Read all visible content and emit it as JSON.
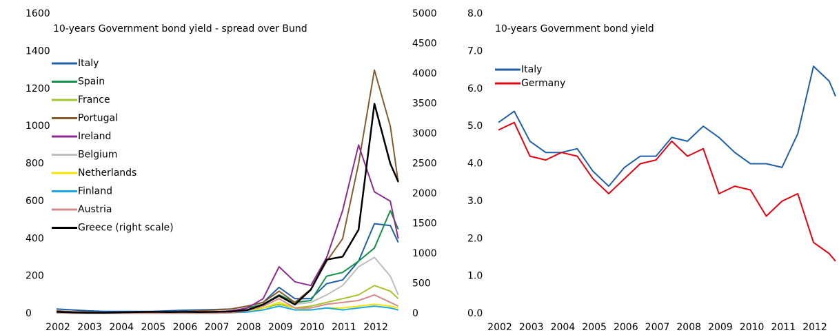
{
  "chart_data": [
    {
      "type": "line",
      "title": "10-years Government bond yield - spread over Bund",
      "x": [
        2002,
        2002.5,
        2003,
        2003.5,
        2004,
        2004.5,
        2005,
        2005.5,
        2006,
        2006.5,
        2007,
        2007.5,
        2008,
        2008.5,
        2009,
        2009.5,
        2010,
        2010.5,
        2011,
        2011.5,
        2012,
        2012.5,
        2012.75
      ],
      "xlim": [
        2002,
        2012.8
      ],
      "xticks": [
        2002,
        2003,
        2004,
        2005,
        2006,
        2007,
        2008,
        2009,
        2010,
        2011,
        2012
      ],
      "ylim": [
        0,
        1600
      ],
      "yticks": [
        0,
        200,
        400,
        600,
        800,
        1000,
        1200,
        1400,
        1600
      ],
      "y2lim": [
        0,
        5000
      ],
      "y2ticks": [
        0,
        500,
        1000,
        1500,
        2000,
        2500,
        3000,
        3500,
        4000,
        4500,
        5000
      ],
      "legend": "upper-left",
      "series": [
        {
          "name": "Italy",
          "color": "#1f5fa8",
          "values": [
            25,
            20,
            15,
            12,
            12,
            12,
            12,
            15,
            18,
            20,
            22,
            25,
            40,
            60,
            140,
            80,
            80,
            160,
            180,
            280,
            480,
            470,
            380
          ]
        },
        {
          "name": "Spain",
          "color": "#139245",
          "values": [
            10,
            5,
            3,
            2,
            2,
            2,
            2,
            2,
            3,
            3,
            5,
            10,
            30,
            50,
            100,
            60,
            70,
            200,
            220,
            280,
            350,
            550,
            450
          ]
        },
        {
          "name": "France",
          "color": "#a3c42a",
          "values": [
            5,
            3,
            2,
            2,
            2,
            2,
            2,
            2,
            2,
            3,
            3,
            5,
            15,
            30,
            50,
            30,
            40,
            60,
            80,
            100,
            150,
            120,
            80
          ]
        },
        {
          "name": "Portugal",
          "color": "#855a2e",
          "values": [
            15,
            10,
            8,
            5,
            5,
            5,
            5,
            5,
            10,
            15,
            20,
            25,
            40,
            60,
            120,
            60,
            130,
            280,
            400,
            800,
            1300,
            1000,
            700
          ]
        },
        {
          "name": "Ireland",
          "color": "#8e2a8e",
          "values": [
            10,
            5,
            5,
            3,
            3,
            3,
            3,
            3,
            5,
            5,
            10,
            15,
            30,
            80,
            250,
            170,
            150,
            300,
            550,
            900,
            650,
            600,
            400
          ]
        },
        {
          "name": "Belgium",
          "color": "#bdbdbd",
          "values": [
            10,
            5,
            5,
            3,
            3,
            3,
            3,
            3,
            3,
            3,
            5,
            10,
            20,
            50,
            90,
            50,
            60,
            100,
            150,
            250,
            300,
            200,
            100
          ]
        },
        {
          "name": "Netherlands",
          "color": "#f2e500",
          "values": [
            5,
            3,
            3,
            3,
            3,
            3,
            3,
            3,
            3,
            3,
            3,
            5,
            10,
            30,
            60,
            30,
            20,
            30,
            30,
            40,
            50,
            40,
            30
          ]
        },
        {
          "name": "Finland",
          "color": "#1ea7e0",
          "values": [
            5,
            3,
            3,
            3,
            3,
            3,
            3,
            3,
            3,
            3,
            3,
            5,
            8,
            20,
            40,
            20,
            20,
            30,
            20,
            30,
            40,
            30,
            20
          ]
        },
        {
          "name": "Austria",
          "color": "#d48a8a",
          "values": [
            5,
            3,
            3,
            3,
            3,
            3,
            3,
            3,
            3,
            3,
            3,
            5,
            15,
            40,
            80,
            30,
            30,
            50,
            60,
            70,
            100,
            60,
            40
          ]
        },
        {
          "name": "Greece (right scale)",
          "color": "#000000",
          "axis": "y2",
          "values": [
            30,
            20,
            15,
            15,
            20,
            25,
            30,
            25,
            30,
            25,
            30,
            35,
            60,
            150,
            300,
            150,
            400,
            900,
            950,
            1400,
            3500,
            2500,
            2200
          ]
        }
      ]
    },
    {
      "type": "line",
      "title": "10-years Government bond yield",
      "x": [
        2002,
        2002.5,
        2003,
        2003.5,
        2004,
        2004.5,
        2005,
        2005.5,
        2006,
        2006.5,
        2007,
        2007.5,
        2008,
        2008.5,
        2009,
        2009.5,
        2010,
        2010.5,
        2011,
        2011.5,
        2012,
        2012.5,
        2012.7
      ],
      "xlim": [
        2002,
        2012.7
      ],
      "xticks": [
        2002,
        2003,
        2004,
        2005,
        2006,
        2007,
        2008,
        2009,
        2010,
        2011,
        2012
      ],
      "ylim": [
        0,
        8
      ],
      "yticks": [
        {
          "value": 0,
          "label": "0.0"
        },
        {
          "value": 1,
          "label": "1.0"
        },
        {
          "value": 2,
          "label": "2.0"
        },
        {
          "value": 3,
          "label": "3.0"
        },
        {
          "value": 4,
          "label": "4.0"
        },
        {
          "value": 5,
          "label": "5.0"
        },
        {
          "value": 6,
          "label": "6.0"
        },
        {
          "value": 7,
          "label": "7.0"
        },
        {
          "value": 8,
          "label": "8.0"
        }
      ],
      "legend": "upper-left",
      "series": [
        {
          "name": "Italy",
          "color": "#1f5fa8",
          "values": [
            5.1,
            5.4,
            4.6,
            4.3,
            4.3,
            4.4,
            3.8,
            3.4,
            3.9,
            4.2,
            4.2,
            4.7,
            4.6,
            5.0,
            4.7,
            4.3,
            4.0,
            4.0,
            3.9,
            4.8,
            6.6,
            6.2,
            5.8
          ]
        },
        {
          "name": "Germany",
          "color": "#e3000f",
          "values": [
            4.9,
            5.1,
            4.2,
            4.1,
            4.3,
            4.2,
            3.6,
            3.2,
            3.6,
            4.0,
            4.1,
            4.6,
            4.2,
            4.4,
            3.2,
            3.4,
            3.3,
            2.6,
            3.0,
            3.2,
            1.9,
            1.6,
            1.4
          ]
        }
      ]
    }
  ]
}
